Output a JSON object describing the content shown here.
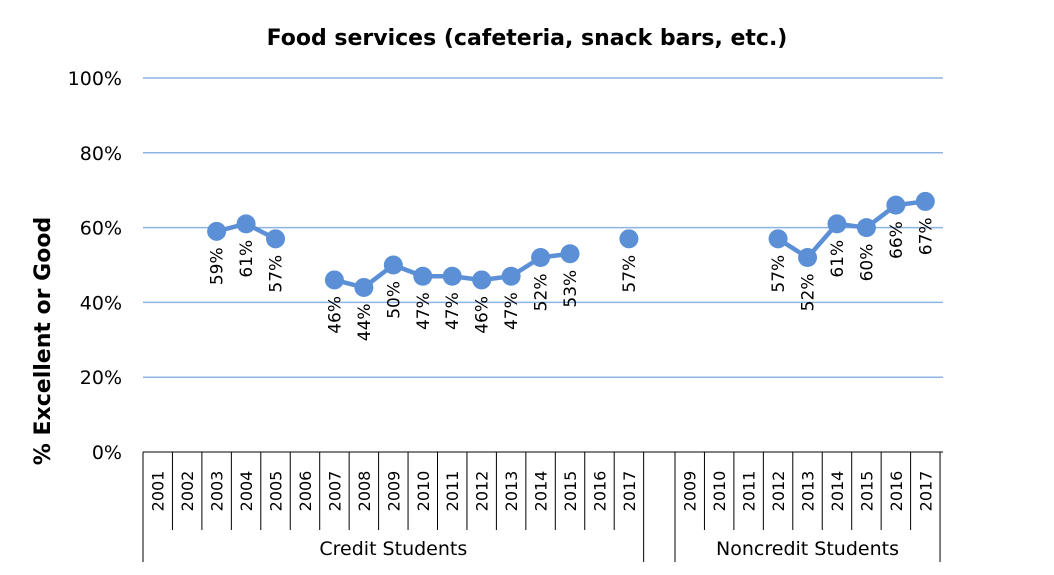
{
  "chart_data": {
    "type": "line",
    "title": "Food services (cafeteria, snack bars, etc.)",
    "ylabel": "% Excellent or Good",
    "xlabel": "",
    "ylim": [
      0,
      100
    ],
    "yticks": [
      "0%",
      "20%",
      "40%",
      "60%",
      "80%",
      "100%"
    ],
    "y_tick_values": [
      0,
      20,
      40,
      60,
      80,
      100
    ],
    "grid": true,
    "series_color": "#5b8fd6",
    "groups": [
      {
        "name": "Credit Students",
        "categories": [
          "2001",
          "2002",
          "2003",
          "2004",
          "2005",
          "2006",
          "2007",
          "2008",
          "2009",
          "2010",
          "2011",
          "2012",
          "2013",
          "2014",
          "2015",
          "2016",
          "2017"
        ],
        "values": [
          null,
          null,
          59,
          61,
          57,
          null,
          46,
          44,
          50,
          47,
          47,
          46,
          47,
          52,
          53,
          null,
          57
        ],
        "labels": [
          "",
          "",
          "59%",
          "61%",
          "57%",
          "",
          "46%",
          "44%",
          "50%",
          "47%",
          "47%",
          "46%",
          "47%",
          "52%",
          "53%",
          "",
          "57%"
        ]
      },
      {
        "name": "Noncredit Students",
        "categories": [
          "2009",
          "2010",
          "2011",
          "2012",
          "2013",
          "2014",
          "2015",
          "2016",
          "2017"
        ],
        "values": [
          null,
          null,
          null,
          57,
          52,
          61,
          60,
          66,
          67
        ],
        "labels": [
          "",
          "",
          "",
          "57%",
          "52%",
          "61%",
          "60%",
          "66%",
          "67%"
        ]
      }
    ]
  }
}
